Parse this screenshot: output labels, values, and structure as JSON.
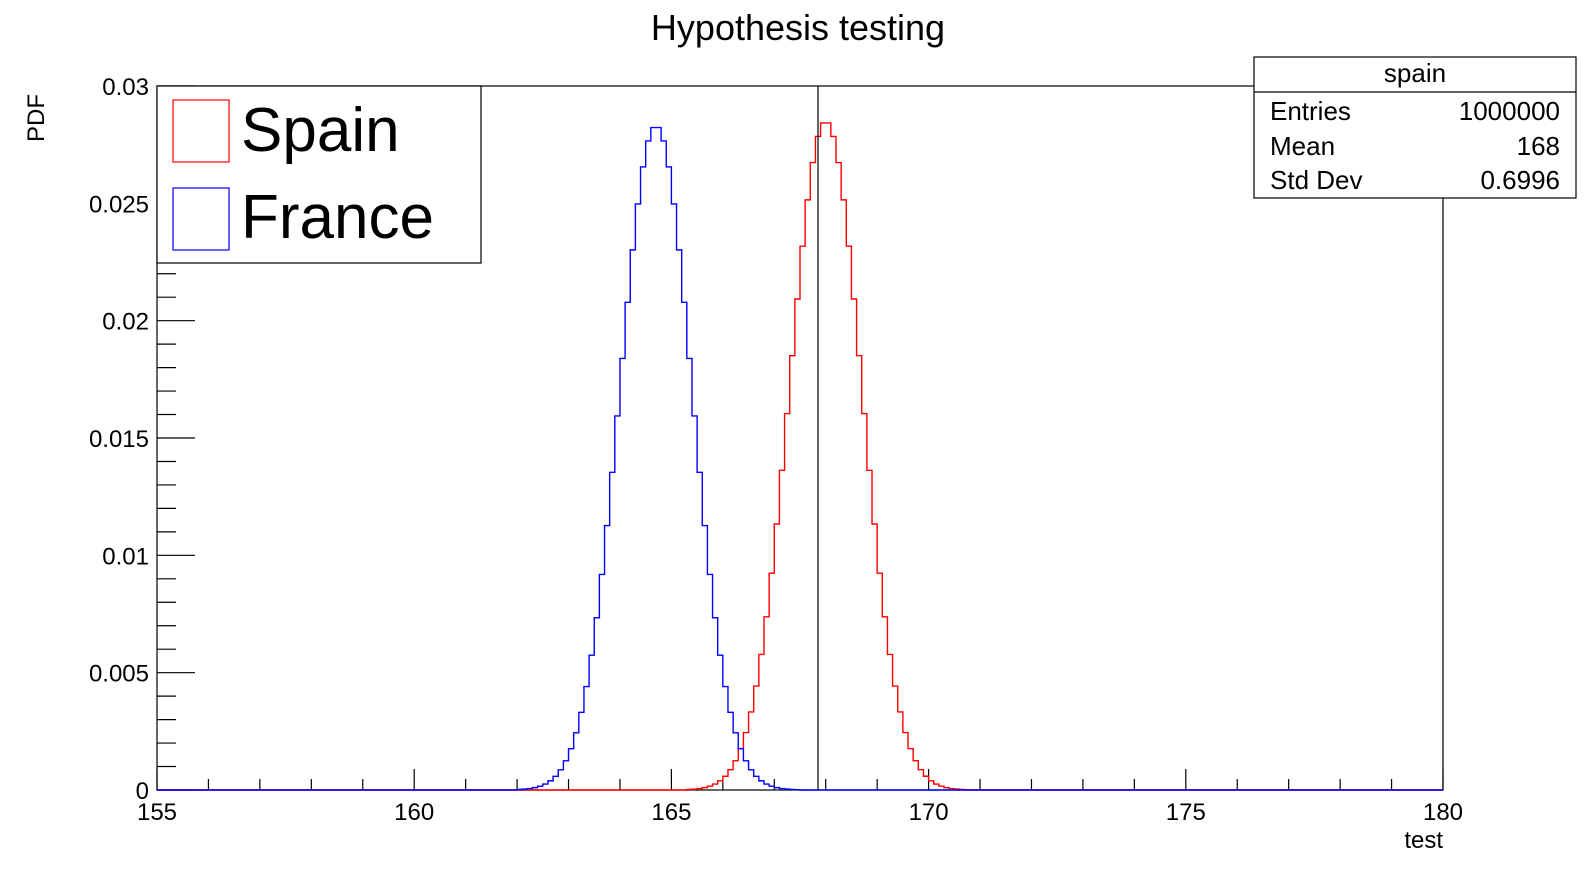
{
  "chart_data": {
    "type": "line",
    "title": "Hypothesis testing",
    "xlabel": "test",
    "ylabel": "PDF",
    "xlim": [
      155,
      180
    ],
    "ylim": [
      0,
      0.03
    ],
    "x_ticks": [
      "155",
      "160",
      "165",
      "170",
      "175",
      "180"
    ],
    "y_ticks": [
      "0",
      "0.005",
      "0.01",
      "0.015",
      "0.02",
      "0.025",
      "0.03"
    ],
    "grid": false,
    "legend_position": "top-left",
    "series": [
      {
        "name": "Spain",
        "color": "#ff0000",
        "mean": 168.0,
        "std": 0.6996,
        "peak": 0.0285,
        "lo": 165.3,
        "hi": 170.8
      },
      {
        "name": "France",
        "color": "#0000ff",
        "mean": 164.7,
        "std": 0.7,
        "peak": 0.0283,
        "lo": 162.0,
        "hi": 167.5
      }
    ],
    "bin_width": 0.1,
    "vertical_line_x": 167.85,
    "stats_box": {
      "title": "spain",
      "rows": [
        {
          "label": "Entries",
          "value": "1000000"
        },
        {
          "label": "Mean",
          "value": "168"
        },
        {
          "label": "Std Dev",
          "value": "0.6996"
        }
      ]
    }
  }
}
